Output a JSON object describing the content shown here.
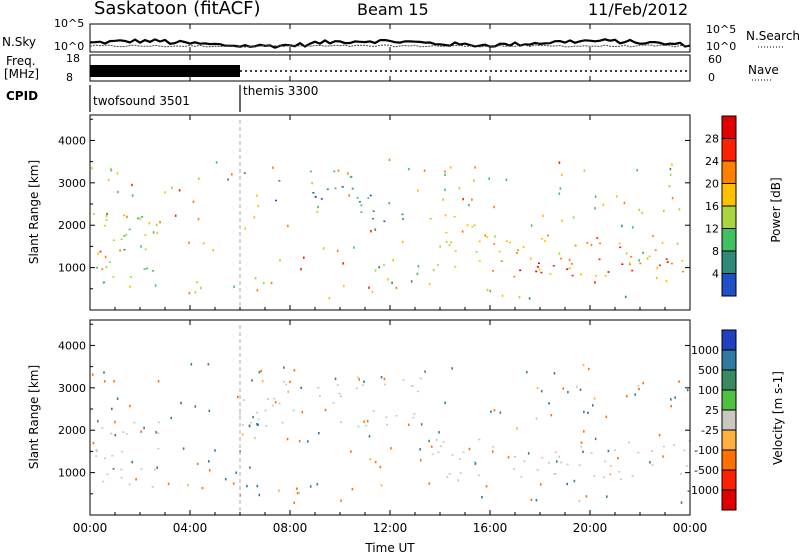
{
  "header": {
    "station": "Saskatoon (fitACF)",
    "beam": "Beam 15",
    "date": "11/Feb/2012"
  },
  "noise_panel": {
    "left_label": "N.Sky",
    "right_label": "N.Search",
    "left_ticks": [
      "10^5",
      "10^0"
    ],
    "right_ticks": [
      "10^5",
      "10^0"
    ]
  },
  "freq_panel": {
    "left_label_line1": "Freq.",
    "left_label_line2": "[MHz]",
    "left_ticks": [
      "18",
      "8"
    ],
    "right_label": "Nave",
    "right_ticks": [
      "60",
      "0"
    ]
  },
  "cpid_panel": {
    "label": "CPID",
    "programs": [
      {
        "name": "twofsound 3501",
        "start_hour": 0,
        "end_hour": 6
      },
      {
        "name": "themis 3300",
        "start_hour": 6,
        "end_hour": 24
      }
    ]
  },
  "power_panel": {
    "ylabel": "Slant Range [km]",
    "yticks": [
      "1000",
      "2000",
      "3000",
      "4000"
    ],
    "colorbar_label": "Power [dB]",
    "colorbar_ticks": [
      "4",
      "8",
      "12",
      "16",
      "20",
      "24",
      "28"
    ],
    "colors": [
      "#1a1aff",
      "#2050c8",
      "#2f8a78",
      "#40c060",
      "#a8d640",
      "#ffc000",
      "#ff8000",
      "#ff2000",
      "#e00000"
    ]
  },
  "velocity_panel": {
    "ylabel": "Slant Range [km]",
    "yticks": [
      "1000",
      "2000",
      "3000",
      "4000"
    ],
    "colorbar_label": "Velocity [m s-1]",
    "colorbar_ticks": [
      "1000",
      "500",
      "100",
      "25",
      "-25",
      "-100",
      "-500",
      "-1000"
    ],
    "colors": [
      "#2040c0",
      "#2e7aa0",
      "#3a8a60",
      "#50c040",
      "#c8c8c0",
      "#ffb040",
      "#ff7000",
      "#ff2000",
      "#e00000"
    ]
  },
  "xaxis": {
    "label": "Time UT",
    "ticks": [
      "00:00",
      "04:00",
      "08:00",
      "12:00",
      "16:00",
      "20:00",
      "00:00"
    ]
  },
  "chart_data": {
    "type": "heatmap",
    "x_unit": "hours UT",
    "xlim": [
      0,
      24
    ],
    "ylim_km": [
      0,
      4600
    ],
    "power_bands": [
      {
        "hours": [
          0.0,
          2.8
        ],
        "range_km": [
          600,
          2300
        ],
        "value_db": 12
      },
      {
        "hours": [
          0.3,
          0.8
        ],
        "range_km": [
          800,
          1500
        ],
        "value_db": 24
      },
      {
        "hours": [
          5.9,
          10.5
        ],
        "range_km": [
          2600,
          3300
        ],
        "value_db": 8
      },
      {
        "hours": [
          10.5,
          13.5
        ],
        "range_km": [
          2100,
          2900
        ],
        "value_db": 8
      },
      {
        "hours": [
          13.5,
          15.5
        ],
        "range_km": [
          1000,
          2300
        ],
        "value_db": 16
      },
      {
        "hours": [
          15.5,
          24.0
        ],
        "range_km": [
          800,
          1800
        ],
        "value_db": 20
      },
      {
        "hours": [
          15.5,
          24.0
        ],
        "range_km": [
          850,
          1150
        ],
        "value_db": 28
      }
    ],
    "velocity_bands": [
      {
        "hours": [
          0.0,
          2.8
        ],
        "range_km": [
          600,
          2300
        ],
        "value_ms": 0
      },
      {
        "hours": [
          0.5,
          1.0
        ],
        "range_km": [
          700,
          1300
        ],
        "value_ms": 300
      },
      {
        "hours": [
          5.9,
          13.5
        ],
        "range_km": [
          2100,
          3300
        ],
        "value_ms": 0
      },
      {
        "hours": [
          13.5,
          24.0
        ],
        "range_km": [
          800,
          1800
        ],
        "value_ms": 0
      }
    ],
    "cpid_change_hour": 6
  }
}
